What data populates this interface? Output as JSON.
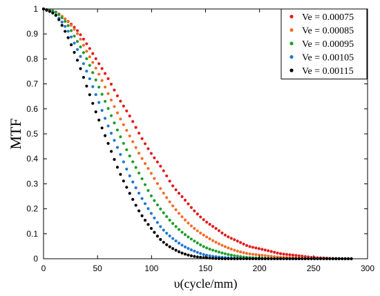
{
  "chart_data": {
    "type": "scatter",
    "title": "",
    "xlabel": "υ(cycle/mm)",
    "ylabel": "MTF",
    "xlim": [
      0,
      300
    ],
    "ylim": [
      0,
      1
    ],
    "xticks": [
      "0",
      "50",
      "100",
      "150",
      "200",
      "250",
      "300"
    ],
    "yticks": [
      "0",
      "0.1",
      "0.2",
      "0.3",
      "0.4",
      "0.5",
      "0.6",
      "0.7",
      "0.8",
      "0.9",
      "1"
    ],
    "grid": false,
    "legend_position": "top-right",
    "x": [
      0,
      10,
      20,
      30,
      40,
      50,
      60,
      70,
      80,
      90,
      100,
      110,
      120,
      130,
      140,
      150,
      160,
      170,
      180,
      190,
      200,
      210,
      220,
      230,
      240,
      250,
      260,
      270,
      285
    ],
    "series": [
      {
        "name": "Ve = 0.00075",
        "color": "#e41a1c",
        "values": [
          1.0,
          0.99,
          0.96,
          0.92,
          0.86,
          0.79,
          0.72,
          0.64,
          0.57,
          0.49,
          0.42,
          0.36,
          0.29,
          0.24,
          0.19,
          0.15,
          0.12,
          0.09,
          0.07,
          0.05,
          0.04,
          0.03,
          0.02,
          0.015,
          0.01,
          0.005,
          0.003,
          0.001,
          0.0
        ]
      },
      {
        "name": "Ve = 0.00085",
        "color": "#f26d2b",
        "values": [
          1.0,
          0.99,
          0.96,
          0.91,
          0.83,
          0.75,
          0.66,
          0.57,
          0.49,
          0.41,
          0.34,
          0.27,
          0.21,
          0.16,
          0.12,
          0.09,
          0.065,
          0.045,
          0.03,
          0.02,
          0.015,
          0.01,
          0.006,
          0.004,
          0.002,
          0.001,
          0.0,
          0.0,
          0.0
        ]
      },
      {
        "name": "Ve = 0.00095",
        "color": "#1e9e2a",
        "values": [
          1.0,
          0.99,
          0.95,
          0.88,
          0.8,
          0.7,
          0.6,
          0.5,
          0.41,
          0.33,
          0.25,
          0.19,
          0.14,
          0.1,
          0.07,
          0.045,
          0.03,
          0.018,
          0.01,
          0.005,
          0.003,
          0.001,
          0.0,
          0.0,
          0.0,
          0.0,
          0.0,
          0.0,
          0.0
        ]
      },
      {
        "name": "Ve = 0.00105",
        "color": "#1f77d4",
        "values": [
          1.0,
          0.98,
          0.93,
          0.85,
          0.75,
          0.64,
          0.53,
          0.43,
          0.33,
          0.25,
          0.18,
          0.12,
          0.08,
          0.05,
          0.03,
          0.015,
          0.008,
          0.004,
          0.002,
          0.001,
          0.0,
          0.0,
          0.0,
          0.0,
          0.0,
          0.0,
          0.0,
          0.0,
          0.0
        ]
      },
      {
        "name": "Ve = 0.00115",
        "color": "#000000",
        "values": [
          1.0,
          0.98,
          0.91,
          0.81,
          0.69,
          0.57,
          0.46,
          0.35,
          0.26,
          0.18,
          0.12,
          0.07,
          0.04,
          0.02,
          0.009,
          0.004,
          0.001,
          0.0,
          0.0,
          0.0,
          0.0,
          0.0,
          0.0,
          0.0,
          0.0,
          0.0,
          0.0,
          0.0,
          0.0
        ]
      }
    ]
  }
}
